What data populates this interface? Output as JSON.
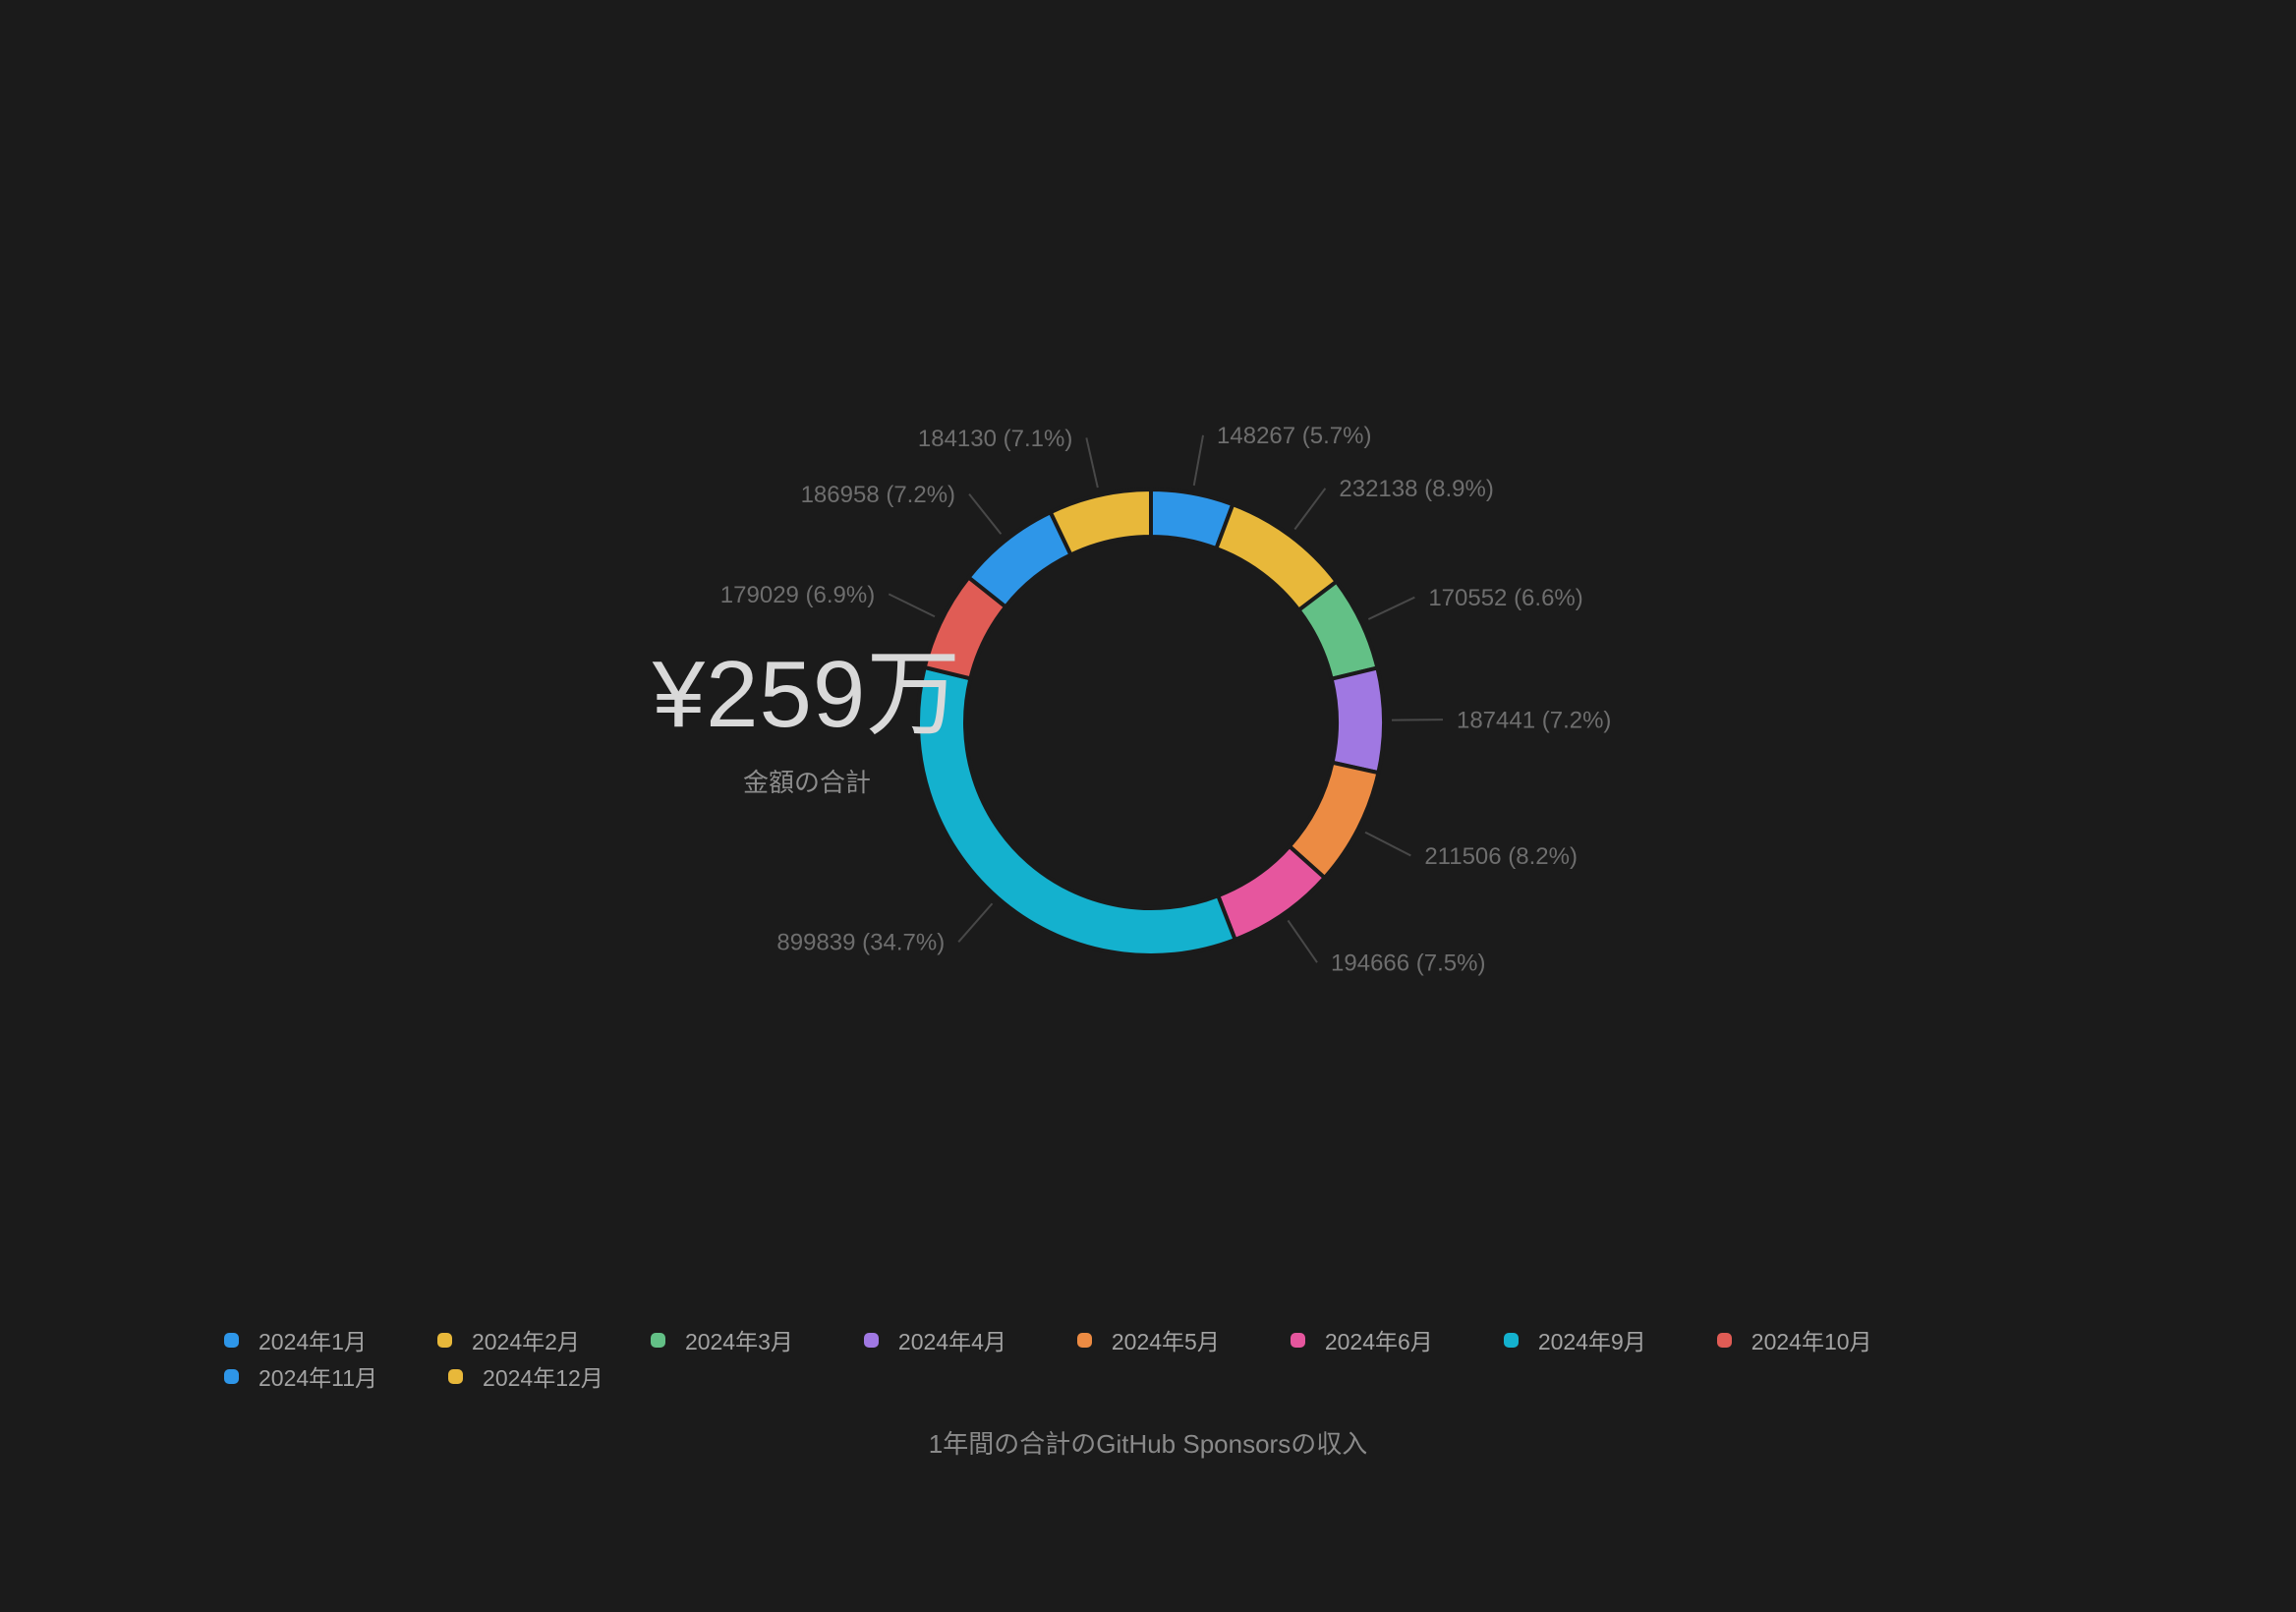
{
  "page": {
    "background_color": "#1b1b1b",
    "caption": "1年間の合計のGitHub Sponsorsの収入"
  },
  "chart_data": {
    "type": "pie",
    "style": "donut",
    "title": "1年間の合計のGitHub Sponsorsの収入",
    "center_total_label": "¥259万",
    "center_sub_label": "金額の合計",
    "total_value": 2594526,
    "legend_position": "bottom",
    "callout_text_color": "#6e6e6e",
    "leader_line_color": "#484848",
    "series": [
      {
        "label": "2024年1月",
        "value": 148267,
        "pct": 5.7,
        "color": "#2e96e8",
        "callout": "148267 (5.7%)"
      },
      {
        "label": "2024年2月",
        "value": 232138,
        "pct": 8.9,
        "color": "#e8b83a",
        "callout": "232138 (8.9%)"
      },
      {
        "label": "2024年3月",
        "value": 170552,
        "pct": 6.6,
        "color": "#63c086",
        "callout": "170552 (6.6%)"
      },
      {
        "label": "2024年4月",
        "value": 187441,
        "pct": 7.2,
        "color": "#a078e2",
        "callout": "187441 (7.2%)"
      },
      {
        "label": "2024年5月",
        "value": 211506,
        "pct": 8.2,
        "color": "#ec8b43",
        "callout": "211506 (8.2%)"
      },
      {
        "label": "2024年6月",
        "value": 194666,
        "pct": 7.5,
        "color": "#e6569e",
        "callout": "194666 (7.5%)"
      },
      {
        "label": "2024年9月",
        "value": 899839,
        "pct": 34.7,
        "color": "#14b1ce",
        "callout": "899839 (34.7%)"
      },
      {
        "label": "2024年10月",
        "value": 179029,
        "pct": 6.9,
        "color": "#e05c55",
        "callout": "179029 (6.9%)"
      },
      {
        "label": "2024年11月",
        "value": 186958,
        "pct": 7.2,
        "color": "#2e96e8",
        "callout": "186958 (7.2%)"
      },
      {
        "label": "2024年12月",
        "value": 184130,
        "pct": 7.1,
        "color": "#e8b83a",
        "callout": "184130 (7.1%)"
      }
    ]
  }
}
